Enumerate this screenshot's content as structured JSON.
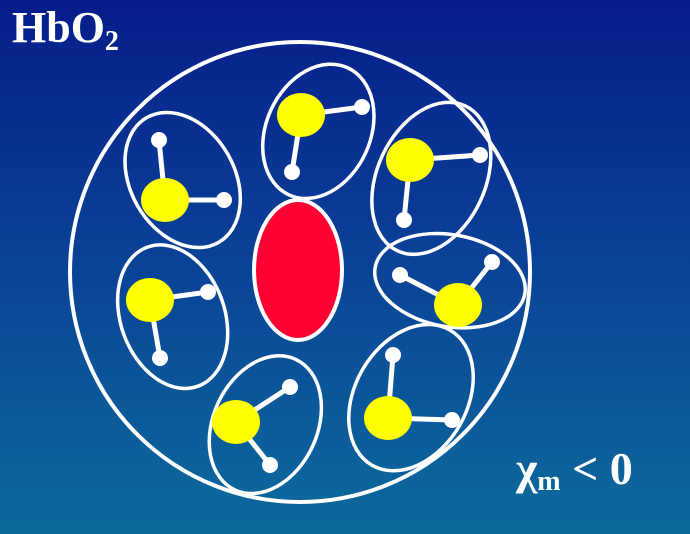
{
  "title": {
    "main": "HbO",
    "subscript": "2"
  },
  "susceptibility": {
    "symbol": "χ",
    "subscript": "m",
    "relation": "< 0"
  },
  "colors": {
    "outline": "#ffffff",
    "center_ion": "#ff0033",
    "water_oxygen": "#ffff00",
    "water_hydrogen": "#ffffff",
    "background_top": "#061d8a",
    "background_bottom": "#0c6b9c"
  },
  "components": {
    "center": "ion-ellipse",
    "ligands": [
      "water-molecule",
      "water-molecule",
      "water-molecule",
      "water-molecule",
      "water-molecule",
      "water-molecule",
      "water-molecule"
    ]
  }
}
